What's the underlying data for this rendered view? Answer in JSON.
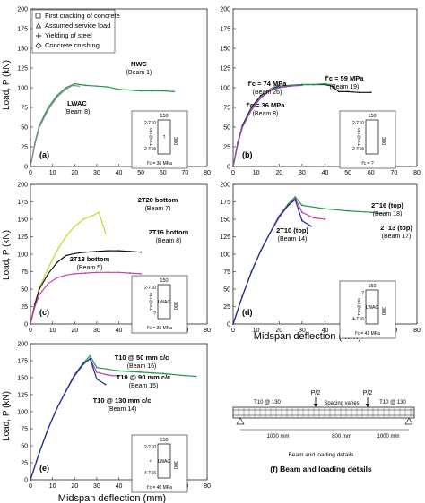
{
  "legend": {
    "items": [
      {
        "label": "First cracking of concrete",
        "marker": "square"
      },
      {
        "label": "Assumed service load",
        "marker": "triangle"
      },
      {
        "label": "Yielding of steel",
        "marker": "cross"
      },
      {
        "label": "Concrete crushing",
        "marker": "diamond"
      }
    ]
  },
  "axes": {
    "ylabel": "Load, P (kN)",
    "xlabel": "Midspan deflection (mm)",
    "xticks": [
      "0",
      "10",
      "20",
      "30",
      "40",
      "50",
      "60",
      "70",
      "80"
    ],
    "yticks": [
      "0",
      "25",
      "50",
      "75",
      "100",
      "125",
      "150",
      "175",
      "200"
    ]
  },
  "section": {
    "width": "150",
    "height": "300",
    "lwac": "LWAC"
  },
  "chart_data": [
    {
      "type": "line",
      "panel": "(a)",
      "xlim": [
        0,
        80
      ],
      "ylim": [
        0,
        200
      ],
      "annotations": [
        {
          "text": "NWC",
          "sub": "(Beam 1)"
        },
        {
          "text": "LWAC",
          "sub": "(Beam 8)"
        }
      ],
      "inset": {
        "top": "2-T10",
        "mid": "T10@130",
        "bottom": "2-T16",
        "core": "?",
        "fc": "f'c = 36 MPa"
      },
      "series": [
        {
          "name": "Beam 1",
          "color": "#1a9a4c",
          "x": [
            0,
            2,
            4,
            8,
            12,
            16,
            20,
            25,
            30,
            35,
            40,
            45,
            50,
            55,
            60,
            65
          ],
          "y": [
            0,
            30,
            52,
            75,
            90,
            100,
            105,
            103,
            102,
            101,
            98,
            97,
            96,
            96,
            96,
            95
          ]
        },
        {
          "name": "Beam 8",
          "color": "#8a8a8a",
          "x": [
            0,
            2,
            4,
            8,
            12,
            16,
            19,
            22
          ],
          "y": [
            0,
            28,
            50,
            72,
            88,
            98,
            103,
            102
          ]
        }
      ]
    },
    {
      "type": "line",
      "panel": "(b)",
      "xlim": [
        0,
        80
      ],
      "ylim": [
        0,
        200
      ],
      "annotations": [
        {
          "text": "f'c = 74 MPa",
          "sub": "(Beam 26)"
        },
        {
          "text": "f'c = 59 MPa",
          "sub": "(Beam 19)"
        },
        {
          "text": "f'c = 36 MPa",
          "sub": "(Beam 8)"
        }
      ],
      "inset": {
        "top": "2-T10",
        "mid": "T10@130",
        "bottom": "2-T16",
        "core": "",
        "fc": "f'c = ?"
      },
      "series": [
        {
          "name": "Beam 26",
          "color": "#111111",
          "x": [
            0,
            2,
            4,
            8,
            12,
            16,
            20,
            25,
            30,
            35,
            40,
            43,
            46,
            50,
            55,
            60
          ],
          "y": [
            0,
            30,
            52,
            75,
            90,
            98,
            102,
            103,
            104,
            104,
            104,
            102,
            95,
            95,
            94,
            94
          ]
        },
        {
          "name": "Beam 19",
          "color": "#1a9a4c",
          "x": [
            0,
            2,
            4,
            8,
            12,
            16,
            20,
            25,
            30,
            35,
            40,
            42
          ],
          "y": [
            0,
            28,
            50,
            73,
            88,
            97,
            101,
            103,
            104,
            104,
            105,
            104
          ]
        },
        {
          "name": "Beam 8",
          "color": "#8a8a8a",
          "x": [
            0,
            2,
            4,
            8,
            12,
            16,
            19,
            22
          ],
          "y": [
            0,
            28,
            50,
            72,
            88,
            98,
            103,
            102
          ]
        },
        {
          "name": "",
          "color": "#9b3fb8",
          "x": [
            0,
            2,
            4,
            8,
            12,
            16,
            20,
            25,
            30
          ],
          "y": [
            0,
            29,
            50,
            72,
            87,
            96,
            100,
            102,
            103
          ]
        }
      ]
    },
    {
      "type": "line",
      "panel": "(c)",
      "xlim": [
        0,
        80
      ],
      "ylim": [
        0,
        200
      ],
      "annotations": [
        {
          "text": "2T20 bottom",
          "sub": "(Beam 7)"
        },
        {
          "text": "2T16 bottom",
          "sub": "(Beam 8)"
        },
        {
          "text": "2T13 bottom",
          "sub": "(Beam 5)"
        }
      ],
      "inset": {
        "top": "2-T10",
        "mid": "T10@130",
        "bottom": "?",
        "core": "LWAC",
        "fc": "f'c = 36 MPa"
      },
      "series": [
        {
          "name": "Beam 7",
          "color": "#c9d62a",
          "x": [
            0,
            2,
            4,
            8,
            12,
            16,
            20,
            24,
            28,
            31,
            34
          ],
          "y": [
            0,
            30,
            52,
            80,
            105,
            125,
            140,
            150,
            155,
            160,
            130
          ]
        },
        {
          "name": "Beam 8",
          "color": "#111111",
          "x": [
            0,
            2,
            4,
            8,
            12,
            16,
            20,
            25,
            30,
            35,
            40,
            45,
            50
          ],
          "y": [
            0,
            28,
            50,
            72,
            88,
            98,
            101,
            103,
            104,
            105,
            105,
            104,
            103
          ]
        },
        {
          "name": "Beam 5",
          "color": "#c23fb0",
          "x": [
            0,
            2,
            4,
            8,
            12,
            16,
            20,
            25,
            30,
            35,
            40,
            45,
            50
          ],
          "y": [
            0,
            25,
            42,
            58,
            66,
            70,
            72,
            73,
            74,
            74,
            74,
            73,
            72
          ]
        }
      ]
    },
    {
      "type": "line",
      "panel": "(d)",
      "xlim": [
        0,
        80
      ],
      "ylim": [
        0,
        200
      ],
      "annotations": [
        {
          "text": "2T16 (top)",
          "sub": "(Beam 18)"
        },
        {
          "text": "2T13 (top)",
          "sub": "(Beam 17)"
        },
        {
          "text": "2T10 (top)",
          "sub": "(Beam 14)"
        }
      ],
      "inset": {
        "top": "?",
        "mid": "T10@130",
        "bottom": "4-T16",
        "core": "LWAC",
        "fc": "f'c = 41 MPa"
      },
      "series": [
        {
          "name": "Beam 18",
          "color": "#1a9a4c",
          "x": [
            0,
            4,
            8,
            12,
            16,
            20,
            24,
            27,
            30,
            40,
            50,
            60,
            65
          ],
          "y": [
            0,
            40,
            75,
            105,
            130,
            155,
            172,
            182,
            170,
            165,
            162,
            160,
            158
          ]
        },
        {
          "name": "Beam 17",
          "color": "#c23fb0",
          "x": [
            0,
            4,
            8,
            12,
            16,
            20,
            24,
            27,
            30,
            35,
            40
          ],
          "y": [
            0,
            40,
            75,
            105,
            130,
            155,
            170,
            180,
            160,
            152,
            150
          ]
        },
        {
          "name": "Beam 14",
          "color": "#1a2a9a",
          "x": [
            0,
            4,
            8,
            12,
            16,
            20,
            24,
            27,
            30,
            34
          ],
          "y": [
            0,
            40,
            75,
            105,
            130,
            153,
            170,
            178,
            148,
            140
          ]
        }
      ]
    },
    {
      "type": "line",
      "panel": "(e)",
      "xlim": [
        0,
        80
      ],
      "ylim": [
        0,
        200
      ],
      "annotations": [
        {
          "text": "T10 @ 50 mm c/c",
          "sub": "(Beam 16)"
        },
        {
          "text": "T10 @ 90 mm c/c",
          "sub": "(Beam 15)"
        },
        {
          "text": "T10 @ 130 mm c/c",
          "sub": "(Beam 14)"
        }
      ],
      "inset": {
        "top": "2-T10",
        "mid": "?",
        "bottom": "4-T16",
        "core": "LWAC",
        "fc": "f'c = 40 MPa"
      },
      "series": [
        {
          "name": "Beam 16",
          "color": "#1a9a4c",
          "x": [
            0,
            4,
            8,
            12,
            16,
            20,
            24,
            27,
            30,
            40,
            50,
            60,
            70,
            75
          ],
          "y": [
            0,
            40,
            75,
            105,
            130,
            155,
            172,
            182,
            165,
            160,
            158,
            156,
            153,
            152
          ]
        },
        {
          "name": "Beam 15",
          "color": "#c23fb0",
          "x": [
            0,
            4,
            8,
            12,
            16,
            20,
            24,
            27,
            30,
            35,
            40
          ],
          "y": [
            0,
            40,
            75,
            105,
            130,
            155,
            170,
            178,
            158,
            154,
            152
          ]
        },
        {
          "name": "Beam 14",
          "color": "#1a2a9a",
          "x": [
            0,
            4,
            8,
            12,
            16,
            20,
            24,
            27,
            30,
            34
          ],
          "y": [
            0,
            40,
            75,
            105,
            130,
            153,
            170,
            178,
            148,
            140
          ]
        }
      ]
    }
  ],
  "beam": {
    "p_left": "P/2",
    "p_right": "P/2",
    "stirrup_left": "T10 @ 130",
    "stirrup_right": "T10 @ 130",
    "spacing": "Spacing varies",
    "d1": "1000 mm",
    "d2": "800 mm",
    "d3": "1000 mm",
    "caption_sub": "Beam and loading details",
    "caption": "(f) Beam and loading details"
  }
}
